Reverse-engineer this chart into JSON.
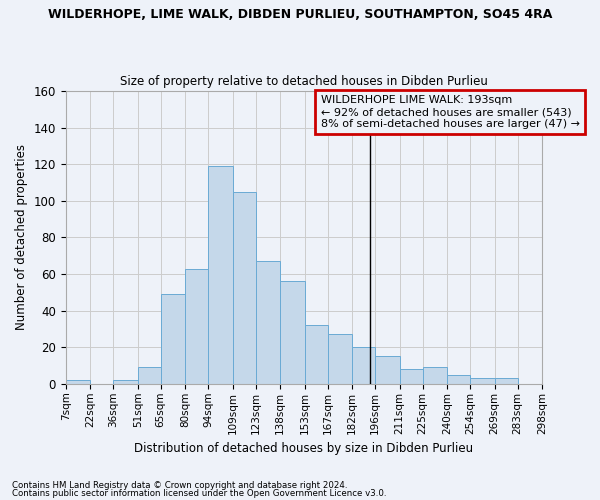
{
  "title": "WILDERHOPE, LIME WALK, DIBDEN PURLIEU, SOUTHAMPTON, SO45 4RA",
  "subtitle": "Size of property relative to detached houses in Dibden Purlieu",
  "xlabel": "Distribution of detached houses by size in Dibden Purlieu",
  "ylabel": "Number of detached properties",
  "footnote1": "Contains HM Land Registry data © Crown copyright and database right 2024.",
  "footnote2": "Contains public sector information licensed under the Open Government Licence v3.0.",
  "bar_color": "#c5d8ea",
  "bar_edge_color": "#6aaad4",
  "annotation_text": "WILDERHOPE LIME WALK: 193sqm\n← 92% of detached houses are smaller (543)\n8% of semi-detached houses are larger (47) →",
  "vline_x": 193,
  "vline_color": "#000000",
  "annotation_box_edgecolor": "#cc0000",
  "bin_edges": [
    7,
    22,
    36,
    51,
    65,
    80,
    94,
    109,
    123,
    138,
    153,
    167,
    182,
    196,
    211,
    225,
    240,
    254,
    269,
    283,
    298
  ],
  "bar_heights": [
    2,
    0,
    2,
    9,
    49,
    63,
    119,
    105,
    67,
    56,
    32,
    27,
    20,
    15,
    8,
    9,
    5,
    3,
    3,
    0
  ],
  "ylim": [
    0,
    160
  ],
  "yticks": [
    0,
    20,
    40,
    60,
    80,
    100,
    120,
    140,
    160
  ],
  "grid_color": "#cccccc",
  "background_color": "#eef2f9"
}
